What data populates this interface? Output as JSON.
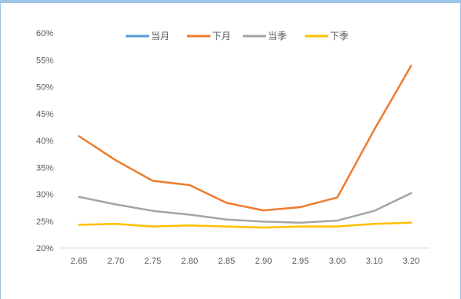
{
  "chart_data": {
    "type": "line",
    "categories": [
      "2.65",
      "2.70",
      "2.75",
      "2.80",
      "2.85",
      "2.90",
      "2.95",
      "3.00",
      "3.10",
      "3.20"
    ],
    "series": [
      {
        "name": "当月",
        "color": "#5b9bd5",
        "values": [
          null,
          null,
          null,
          null,
          null,
          null,
          null,
          null,
          null,
          null
        ]
      },
      {
        "name": "下月",
        "color": "#ed7d31",
        "values": [
          40.8,
          36.3,
          32.5,
          31.7,
          28.4,
          27.0,
          27.6,
          29.4,
          42.0,
          53.9
        ]
      },
      {
        "name": "当季",
        "color": "#a5a5a5",
        "values": [
          29.5,
          28.1,
          26.9,
          26.2,
          25.3,
          24.9,
          24.7,
          25.1,
          26.9,
          30.2
        ]
      },
      {
        "name": "下季",
        "color": "#ffc000",
        "values": [
          24.3,
          24.5,
          24.0,
          24.2,
          24.0,
          23.8,
          24.0,
          24.0,
          24.5,
          24.7
        ]
      }
    ],
    "y_ticks": [
      "20%",
      "25%",
      "30%",
      "35%",
      "40%",
      "45%",
      "50%",
      "55%",
      "60%"
    ],
    "ylim": [
      20,
      60
    ],
    "y_unit": "%",
    "legend_position": "top",
    "grid": false
  }
}
